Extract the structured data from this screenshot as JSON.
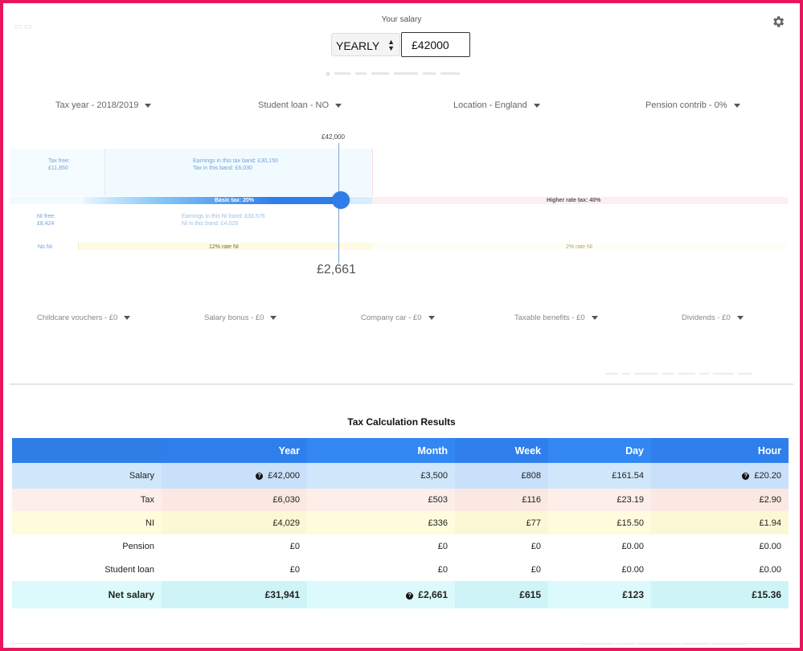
{
  "header": {
    "salary_label": "Your salary",
    "period": "YEARLY",
    "salary_value": "£42000"
  },
  "filters": [
    {
      "label": "Tax year - 2018/2019"
    },
    {
      "label": "Student loan - NO"
    },
    {
      "label": "Location - England"
    },
    {
      "label": "Pension contrib - 0%"
    }
  ],
  "extras": [
    {
      "label": "Childcare vouchers - £0"
    },
    {
      "label": "Salary bonus - £0"
    },
    {
      "label": "Company car - £0"
    },
    {
      "label": "Taxable benefits - £0"
    },
    {
      "label": "Dividends - £0"
    }
  ],
  "chart": {
    "marker_top": "£42,000",
    "marker_value": "£2,661",
    "tax_free_label": "Tax free:",
    "tax_free_value": "£11,850",
    "basic_band_line1": "Earnings in this tax band: £30,150",
    "basic_band_line2": "Tax in this band: £6,030",
    "basic_tax": "Basic tax: 20%",
    "higher_tax": "Higher rate tax: 40%",
    "ni_free_label": "NI free:",
    "ni_free_value": "£8,424",
    "ni_band_line1": "Earnings in this NI band: £33,576",
    "ni_band_line2": "NI in this band: £4,029",
    "no_ni": "No NI",
    "ni_12": "12% rate NI",
    "ni_2": "2% rate NI",
    "colors": {
      "accent": "#2f7de8",
      "tax": "#fde4e7",
      "ni": "#fffbdc",
      "free": "#f1fbff"
    }
  },
  "results": {
    "title": "Tax Calculation Results",
    "columns": [
      "",
      "Year",
      "Month",
      "Week",
      "Day",
      "Hour"
    ],
    "rows": [
      {
        "label": "Salary",
        "year": "£42,000",
        "month": "£3,500",
        "week": "£808",
        "day": "£161.54",
        "hour": "£20.20"
      },
      {
        "label": "Tax",
        "year": "£6,030",
        "month": "£503",
        "week": "£116",
        "day": "£23.19",
        "hour": "£2.90"
      },
      {
        "label": "NI",
        "year": "£4,029",
        "month": "£336",
        "week": "£77",
        "day": "£15.50",
        "hour": "£1.94"
      },
      {
        "label": "Pension",
        "year": "£0",
        "month": "£0",
        "week": "£0",
        "day": "£0.00",
        "hour": "£0.00"
      },
      {
        "label": "Student loan",
        "year": "£0",
        "month": "£0",
        "week": "£0",
        "day": "£0.00",
        "hour": "£0.00"
      },
      {
        "label": "Net salary",
        "year": "£31,941",
        "month": "£2,661",
        "week": "£615",
        "day": "£123",
        "hour": "£15.36"
      }
    ]
  }
}
